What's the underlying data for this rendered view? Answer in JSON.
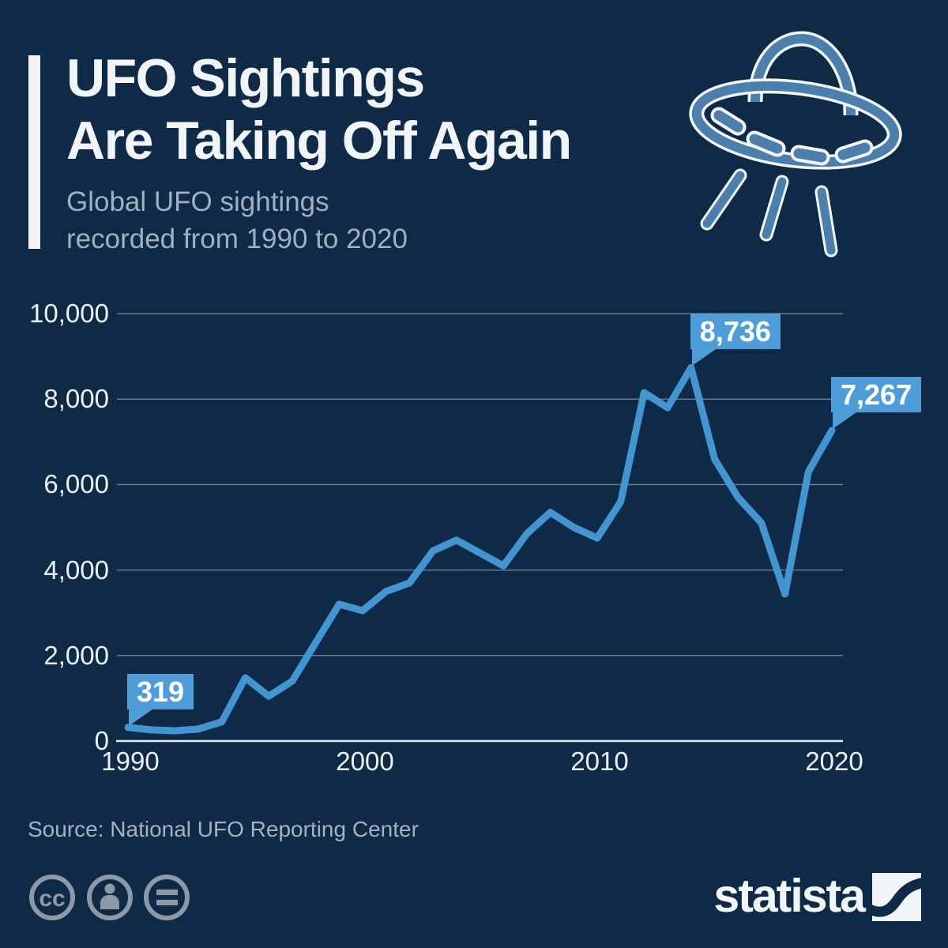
{
  "header": {
    "title_line1": "UFO Sightings",
    "title_line2": "Are Taking Off Again",
    "subtitle_line1": "Global UFO sightings",
    "subtitle_line2": "recorded from 1990 to 2020"
  },
  "chart_data": {
    "type": "line",
    "title": "Global UFO sightings recorded from 1990 to 2020",
    "series_name": "UFO sightings",
    "x": [
      1990,
      1991,
      1992,
      1993,
      1994,
      1995,
      1996,
      1997,
      1998,
      1999,
      2000,
      2001,
      2002,
      2003,
      2004,
      2005,
      2006,
      2007,
      2008,
      2009,
      2010,
      2011,
      2012,
      2013,
      2014,
      2015,
      2016,
      2017,
      2018,
      2019,
      2020
    ],
    "values": [
      319,
      260,
      240,
      280,
      450,
      1480,
      1050,
      1400,
      2300,
      3200,
      3050,
      3500,
      3700,
      4450,
      4700,
      4400,
      4100,
      4850,
      5350,
      5000,
      4750,
      5600,
      8150,
      7800,
      8736,
      6600,
      5700,
      5100,
      3440,
      6300,
      7267
    ],
    "ylim": [
      0,
      10000
    ],
    "grid": true,
    "legend": false,
    "y_ticks": [
      {
        "value": 0,
        "label": "0"
      },
      {
        "value": 2000,
        "label": "2,000"
      },
      {
        "value": 4000,
        "label": "4,000"
      },
      {
        "value": 6000,
        "label": "6,000"
      },
      {
        "value": 8000,
        "label": "8,000"
      },
      {
        "value": 10000,
        "label": "10,000"
      }
    ],
    "x_ticks": [
      {
        "value": 1990,
        "label": "1990"
      },
      {
        "value": 2000,
        "label": "2000"
      },
      {
        "value": 2010,
        "label": "2010"
      },
      {
        "value": 2020,
        "label": "2020"
      }
    ],
    "annotations": [
      {
        "x": 1990,
        "y": 319,
        "label": "319"
      },
      {
        "x": 2014,
        "y": 8736,
        "label": "8,736"
      },
      {
        "x": 2020,
        "y": 7267,
        "label": "7,267"
      }
    ]
  },
  "footer": {
    "source": "Source: National UFO Reporting Center",
    "license_icons": [
      "cc-icon",
      "cc-by-person-icon",
      "cc-nd-equals-icon"
    ],
    "brand": "statista"
  },
  "colors": {
    "background": "#0f2a47",
    "line": "#4295d1",
    "callout": "#4e9dd8",
    "title_white": "#f1f5f9",
    "subtitle_gray": "#a0b0c0",
    "source_gray": "#a6b2c0",
    "footer_icon_gray": "#8c99a7",
    "grid": "rgba(255,255,255,0.38)",
    "axis": "#e9eef3",
    "ufo_blue": "#4d7fad"
  }
}
